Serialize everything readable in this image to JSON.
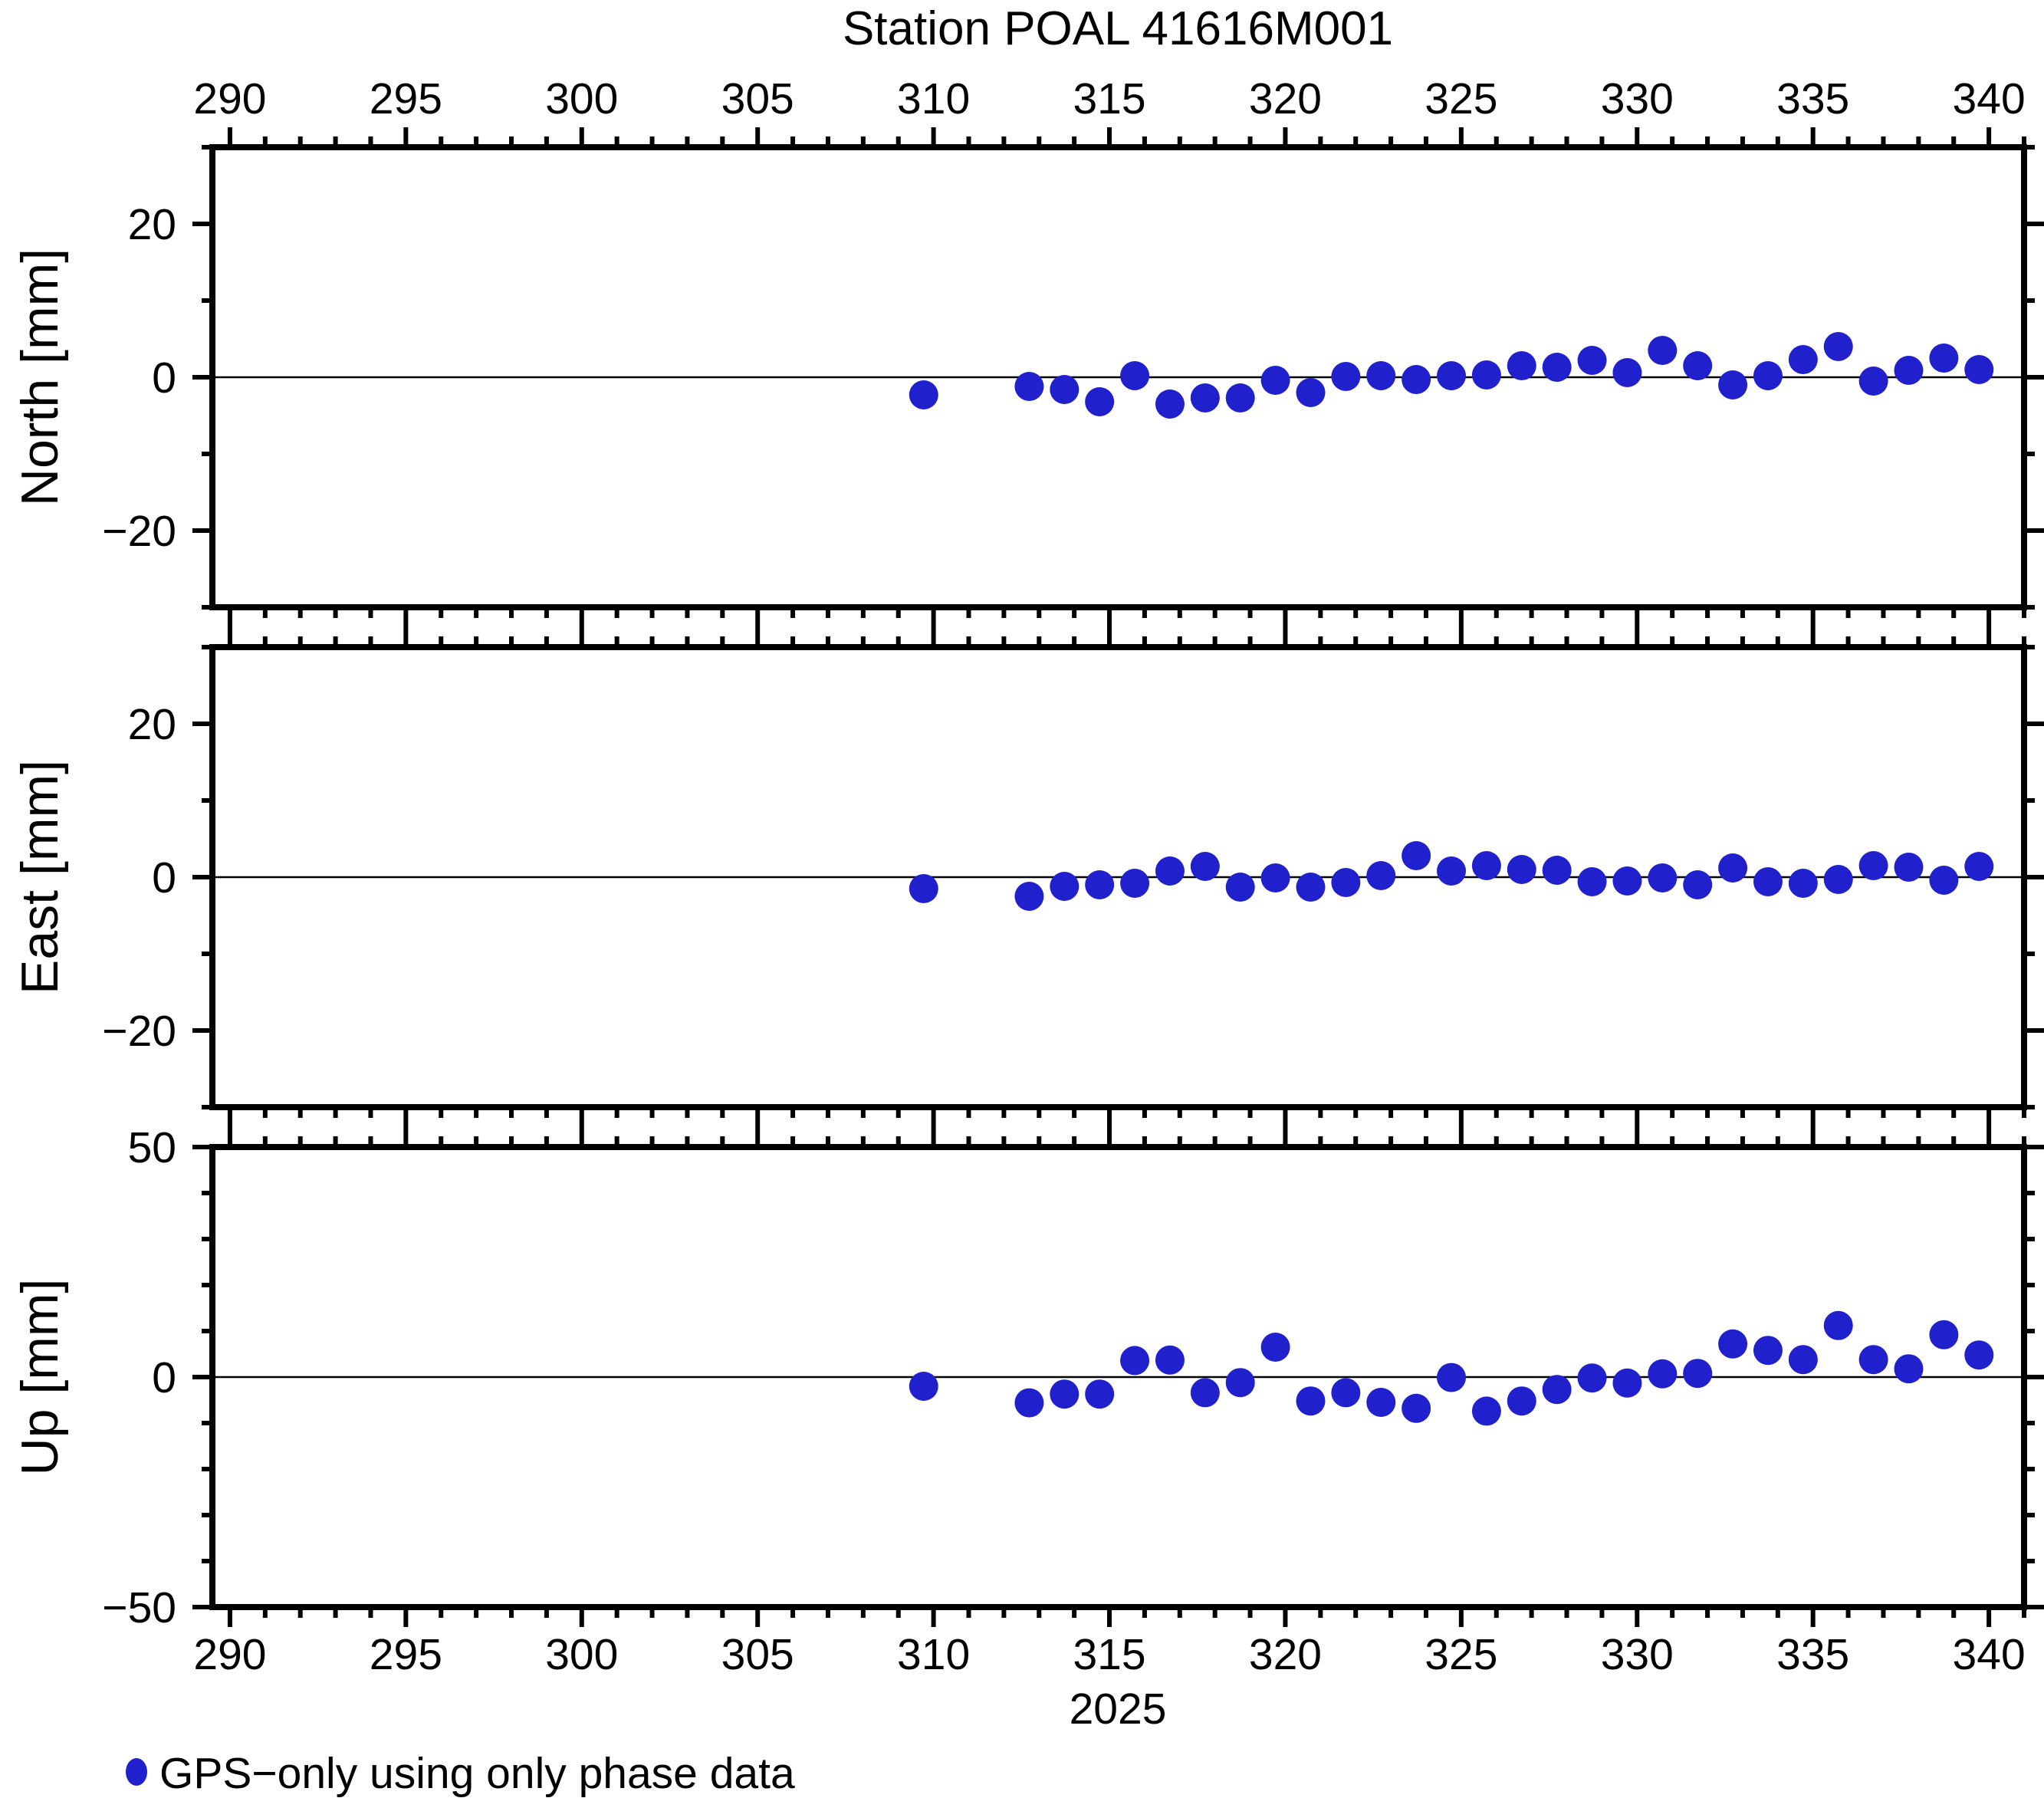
{
  "chart_data": {
    "type": "scatter",
    "title": "Station POAL 41616M001",
    "xlabel": "2025",
    "xlim": [
      289.5,
      341
    ],
    "xticks_major": [
      290,
      295,
      300,
      305,
      310,
      315,
      320,
      325,
      330,
      335,
      340
    ],
    "xtick_minor_step": 1,
    "grid": false,
    "zero_line": true,
    "marker": {
      "shape": "circle",
      "color": "#2020cc",
      "radius_px": 19
    },
    "legend": {
      "label": "GPS−only using only phase data",
      "marker": "circle",
      "color": "#2020cc",
      "position": "bottom-left"
    },
    "days": [
      310,
      313,
      314,
      315,
      316,
      317,
      318,
      319,
      320,
      321,
      322,
      323,
      324,
      325,
      326,
      327,
      328,
      329,
      330,
      331,
      332,
      333,
      334,
      335,
      336,
      337,
      338,
      339,
      340
    ],
    "series": [
      {
        "name": "North",
        "ylabel": "North [mm]",
        "unit": "mm",
        "ylim": [
          -30,
          30
        ],
        "yticks_major": [
          -20,
          0,
          20
        ],
        "ytick_minor_step": 10,
        "values": [
          -2.3,
          -1.2,
          -1.6,
          -3.2,
          0.2,
          -3.5,
          -2.7,
          -2.7,
          -0.4,
          -2.0,
          0.1,
          0.2,
          -0.3,
          0.2,
          0.3,
          1.5,
          1.3,
          2.2,
          0.6,
          3.5,
          1.5,
          -1.0,
          0.2,
          2.3,
          4.0,
          -0.5,
          0.9,
          2.5,
          1.0
        ]
      },
      {
        "name": "East",
        "ylabel": "East [mm]",
        "unit": "mm",
        "ylim": [
          -30,
          30
        ],
        "yticks_major": [
          -20,
          0,
          20
        ],
        "ytick_minor_step": 10,
        "values": [
          -1.5,
          -2.5,
          -1.2,
          -1.0,
          -0.8,
          0.8,
          1.4,
          -1.3,
          -0.1,
          -1.3,
          -0.7,
          0.2,
          2.8,
          0.8,
          1.5,
          1.0,
          0.9,
          -0.6,
          -0.5,
          -0.1,
          -1.0,
          1.2,
          -0.6,
          -0.8,
          -0.3,
          1.5,
          1.3,
          -0.4,
          1.4
        ]
      },
      {
        "name": "Up",
        "ylabel": "Up [mm]",
        "unit": "mm",
        "ylim": [
          -50,
          50
        ],
        "yticks_major": [
          -50,
          0,
          50
        ],
        "ytick_minor_step": 10,
        "values": [
          -2.0,
          -5.6,
          -3.7,
          -3.7,
          3.6,
          3.7,
          -3.4,
          -1.2,
          6.5,
          -5.2,
          -3.4,
          -5.5,
          -6.8,
          -0.1,
          -7.4,
          -5.2,
          -2.7,
          -0.2,
          -1.3,
          0.7,
          0.8,
          7.2,
          5.8,
          3.8,
          11.2,
          3.8,
          1.8,
          9.2,
          4.8
        ]
      }
    ],
    "layout_hints": {
      "legend_position": "bottom-left",
      "day_offset": -0.28,
      "panels_stacked": 3
    }
  }
}
